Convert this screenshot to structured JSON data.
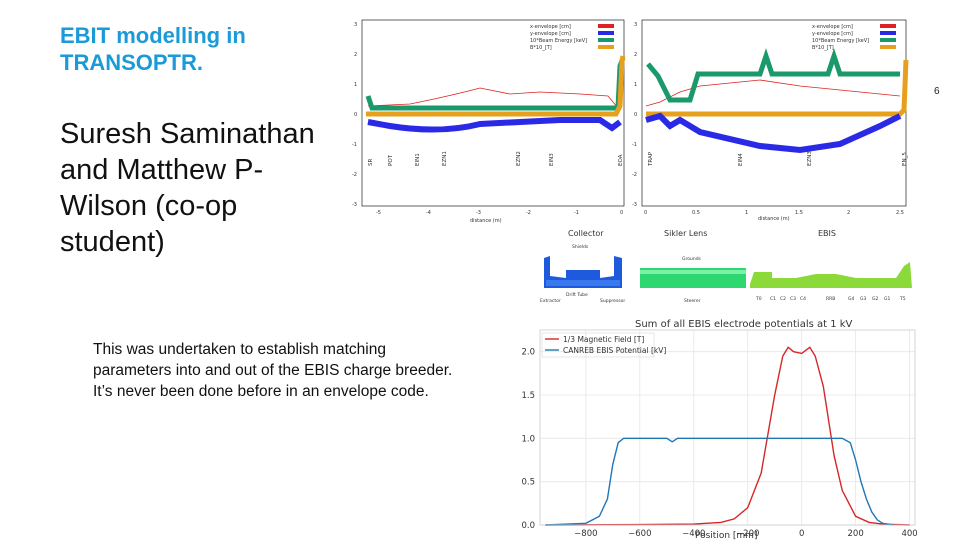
{
  "slide": {
    "title": "EBIT modelling in TRANSOPTR.",
    "slide_number": "6",
    "authors": "Suresh Saminathan and Matthew P-Wilson (co-op student)",
    "description": "This was undertaken to establish matching parameters into and out of the EBIS charge breeder. It’s never been done before in an envelope code."
  },
  "beam_plots": {
    "legend": [
      "x-envelope [cm]",
      "y-envelope [cm]",
      "10*Beam Energy [keV]",
      "B*10_[T]"
    ],
    "colors": {
      "x_env": "#dd2222",
      "y_env": "#2a2ae6",
      "energy": "#1a9a6a",
      "field": "#e6a01e"
    },
    "xlabel": "distance (m)",
    "y_ticks": [
      "3",
      "2",
      "1",
      "0",
      "-1",
      "-2",
      "-3"
    ],
    "left_x_ticks": [
      "-5",
      "-4",
      "-3",
      "-2",
      "-1",
      "0"
    ],
    "right_x_ticks": [
      "0",
      "0.5",
      "1",
      "1.5",
      "2",
      "2.5"
    ],
    "left_elements": [
      "SR",
      "POT",
      "EIN1",
      "EZN1",
      "EZN2",
      "EIN3",
      "EOA"
    ],
    "right_elements": [
      "TRAP",
      "EIN4",
      "EZN3",
      "EN_5"
    ]
  },
  "schematic": {
    "labels": [
      "Collector",
      "Sikler Lens",
      "EBIS"
    ],
    "shields_label": "Shields",
    "drift_tube_label": "Drift Tube",
    "grounds_label": "Grounds",
    "extractor_label": "Extractor",
    "suppressor_label": "Suppressor",
    "steerer_label": "Steerer",
    "electrode_labels": [
      "T0",
      "C1",
      "C2",
      "C3",
      "C4",
      "RRB",
      "G4",
      "G3",
      "G2",
      "G1",
      "T5"
    ]
  },
  "chart_data": {
    "type": "line",
    "title": "Sum of all EBIS electrode potentials at 1 kV",
    "xlabel": "Position [mm]",
    "ylabel": "",
    "xlim": [
      -970,
      420
    ],
    "ylim": [
      0,
      2.25
    ],
    "x_ticks": [
      -800,
      -600,
      -400,
      -200,
      0,
      200,
      400
    ],
    "x_tick_labels": [
      "−800",
      "−600",
      "−400",
      "−200",
      "0",
      "200",
      "400"
    ],
    "y_ticks": [
      0.0,
      0.5,
      1.0,
      1.5,
      2.0
    ],
    "y_tick_labels": [
      "0.0",
      "0.5",
      "1.0",
      "1.5",
      "2.0"
    ],
    "grid": true,
    "legend_position": "top-left",
    "series": [
      {
        "name": "1/3 Magnetic Field [T]",
        "color": "#d62728",
        "x": [
          -950,
          -600,
          -400,
          -300,
          -250,
          -200,
          -150,
          -100,
          -70,
          -50,
          -30,
          0,
          30,
          50,
          80,
          120,
          150,
          200,
          250,
          300,
          400
        ],
        "y": [
          0.0,
          0.005,
          0.01,
          0.03,
          0.07,
          0.2,
          0.6,
          1.5,
          1.95,
          2.05,
          2.0,
          1.98,
          2.05,
          1.95,
          1.6,
          0.8,
          0.4,
          0.1,
          0.03,
          0.01,
          0.0
        ]
      },
      {
        "name": "CANREB EBIS Potential [kV]",
        "color": "#1f77b4",
        "x": [
          -950,
          -800,
          -750,
          -720,
          -700,
          -680,
          -660,
          -500,
          -480,
          -460,
          -440,
          150,
          180,
          200,
          220,
          240,
          260,
          280,
          300,
          340
        ],
        "y": [
          0.0,
          0.02,
          0.1,
          0.3,
          0.7,
          0.95,
          1.0,
          1.0,
          0.96,
          1.0,
          1.0,
          1.0,
          0.95,
          0.75,
          0.5,
          0.3,
          0.15,
          0.06,
          0.02,
          0.0
        ]
      }
    ]
  }
}
